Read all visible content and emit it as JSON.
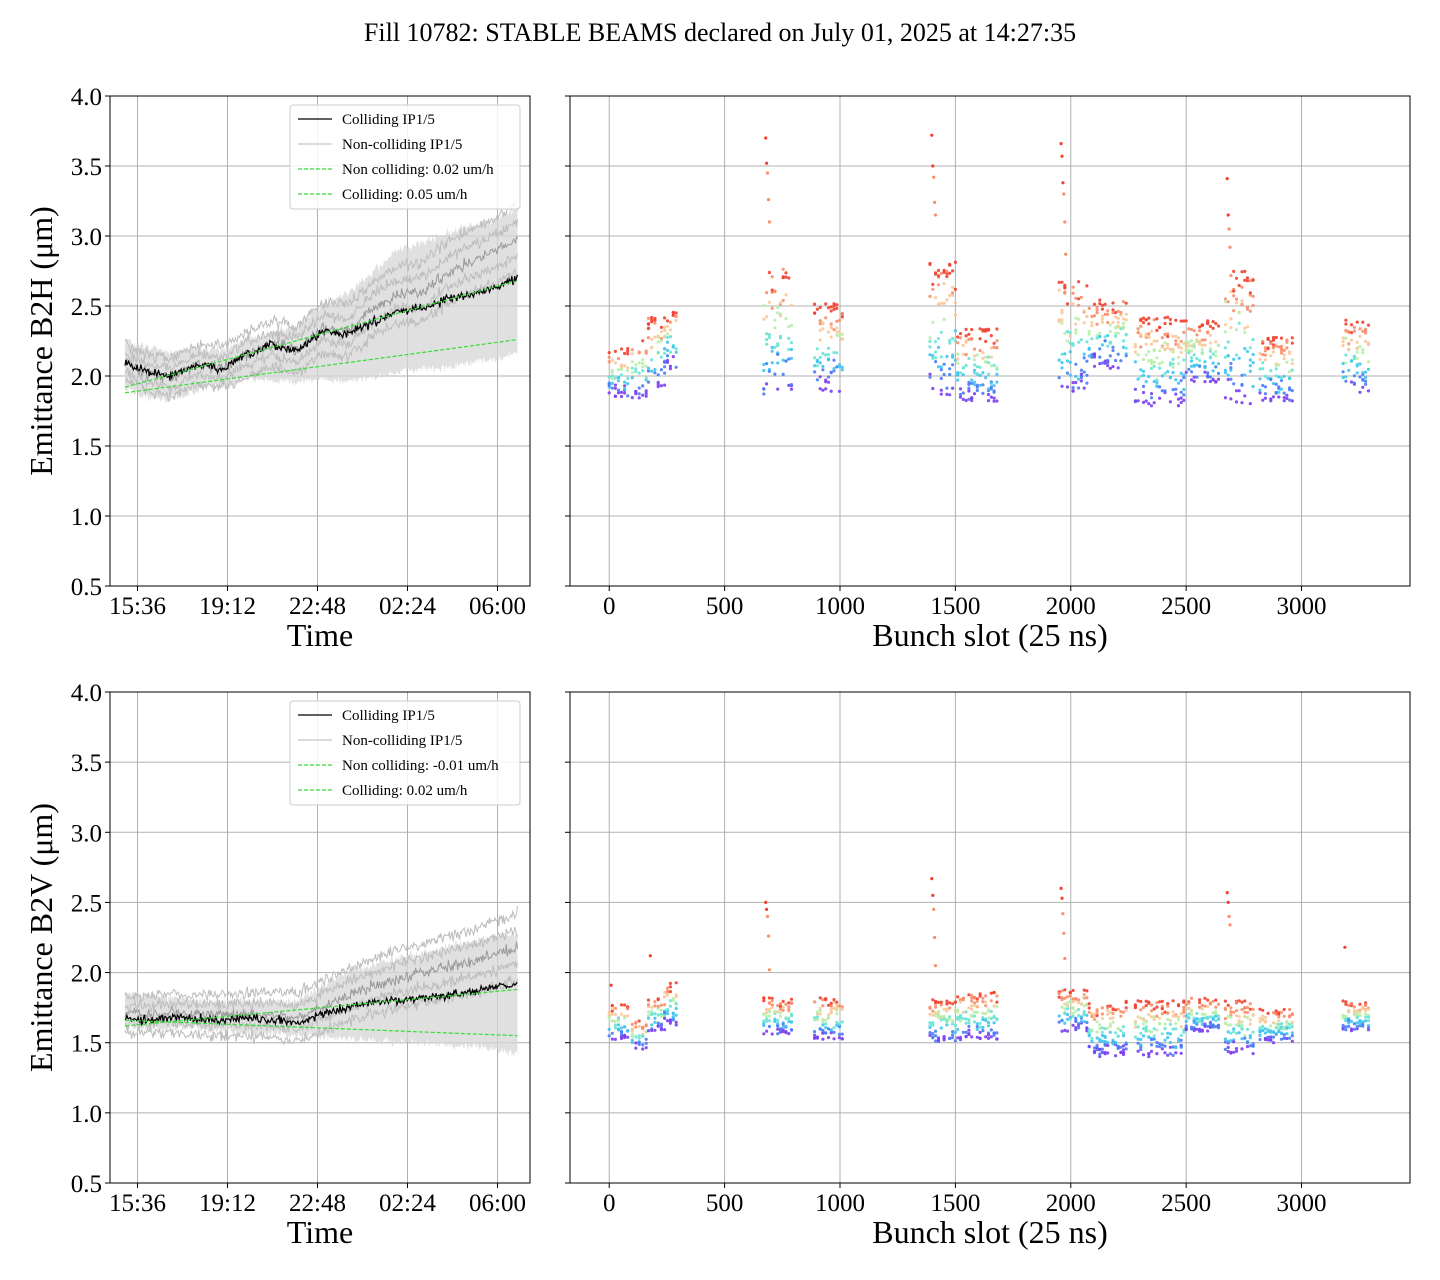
{
  "figure": {
    "title": "Fill 10782: STABLE BEAMS declared on July 01, 2025 at 14:27:35"
  },
  "colors": {
    "colliding": "#000000",
    "non_colliding": "#aaaaaa",
    "fit": "#33dd33",
    "grid": "#b0b0b0",
    "scatter_palette": [
      "#7b3ff2",
      "#4a7cf6",
      "#3fc4f0",
      "#69e4d6",
      "#b7f0a8",
      "#f8c99a",
      "#f88e6a",
      "#f2402d"
    ]
  },
  "chart_data": [
    {
      "id": "b2h_time",
      "type": "line",
      "xlabel": "Time",
      "ylabel": "Emittance B2H (μm)",
      "ylim": [
        0.5,
        4.0
      ],
      "yticks": [
        0.5,
        1.0,
        1.5,
        2.0,
        2.5,
        3.0,
        3.5,
        4.0
      ],
      "yticklabels": [
        "0.5",
        "1.0",
        "1.5",
        "2.0",
        "2.5",
        "3.0",
        "3.5",
        "4.0"
      ],
      "xlim": [
        14.5,
        31.3
      ],
      "xticks": [
        15.6,
        19.2,
        22.8,
        26.4,
        30.0
      ],
      "xticklabels": [
        "15:36",
        "19:12",
        "22:48",
        "02:24",
        "06:00"
      ],
      "grid": true,
      "legend": {
        "position": "top-right",
        "entries": [
          {
            "label": "Colliding IP1/5",
            "style": "colliding"
          },
          {
            "label": "Non-colliding IP1/5",
            "style": "non_colliding"
          },
          {
            "label": "Non colliding: 0.02 um/h",
            "style": "fit"
          },
          {
            "label": "Colliding: 0.05 um/h",
            "style": "fit"
          }
        ]
      },
      "series": [
        {
          "name": "Colliding IP1/5",
          "style": "colliding",
          "x": [
            15.1,
            16.0,
            17.0,
            18.0,
            19.0,
            20.0,
            21.0,
            22.0,
            23.0,
            24.0,
            25.0,
            26.0,
            27.0,
            28.0,
            29.0,
            30.0,
            30.8
          ],
          "y": [
            2.1,
            2.03,
            2.0,
            2.08,
            2.05,
            2.15,
            2.22,
            2.18,
            2.32,
            2.3,
            2.38,
            2.46,
            2.49,
            2.55,
            2.58,
            2.64,
            2.7
          ]
        },
        {
          "name": "Non-colliding IP1/5",
          "style": "non_colliding",
          "x": [
            15.1,
            16.0,
            17.0,
            18.0,
            19.0,
            20.0,
            21.0,
            22.0,
            23.0,
            24.0,
            25.0,
            26.0,
            27.0,
            28.0,
            29.0,
            30.0,
            30.8
          ],
          "y": [
            2.1,
            2.02,
            1.99,
            2.08,
            2.06,
            2.16,
            2.23,
            2.18,
            2.35,
            2.32,
            2.48,
            2.58,
            2.6,
            2.74,
            2.82,
            2.9,
            2.98
          ],
          "band_low": [
            1.92,
            1.85,
            1.83,
            1.9,
            1.92,
            1.98,
            1.96,
            1.95,
            1.98,
            1.97,
            1.99,
            2.02,
            2.05,
            2.06,
            2.1,
            2.12,
            2.18
          ],
          "band_high": [
            2.25,
            2.2,
            2.17,
            2.2,
            2.18,
            2.27,
            2.32,
            2.35,
            2.52,
            2.58,
            2.74,
            2.9,
            2.96,
            3.02,
            3.08,
            3.12,
            3.2
          ]
        },
        {
          "name": "Non colliding: 0.02 um/h",
          "style": "fit",
          "x": [
            15.1,
            30.8
          ],
          "y": [
            1.88,
            2.26
          ]
        },
        {
          "name": "Colliding: 0.05 um/h",
          "style": "fit",
          "x": [
            15.1,
            30.8
          ],
          "y": [
            1.92,
            2.68
          ]
        }
      ]
    },
    {
      "id": "b2h_bunch",
      "type": "scatter",
      "xlabel": "Bunch slot (25 ns)",
      "ylabel": "",
      "ylim": [
        0.5,
        4.0
      ],
      "yticks": [
        0.5,
        1.0,
        1.5,
        2.0,
        2.5,
        3.0,
        3.5,
        4.0
      ],
      "xlim": [
        -170,
        3470
      ],
      "xticks": [
        0,
        500,
        1000,
        1500,
        2000,
        2500,
        3000
      ],
      "xticklabels": [
        "0",
        "500",
        "1000",
        "1500",
        "2000",
        "2500",
        "3000"
      ],
      "grid": true,
      "trains": [
        {
          "x": [
            0,
            80
          ],
          "low": 1.85,
          "high": 2.2,
          "spikes": []
        },
        {
          "x": [
            100,
            160
          ],
          "low": 1.84,
          "high": 2.26,
          "spikes": []
        },
        {
          "x": [
            170,
            240
          ],
          "low": 1.9,
          "high": 2.42,
          "spikes": []
        },
        {
          "x": [
            240,
            290
          ],
          "low": 2.05,
          "high": 2.48,
          "spikes": []
        },
        {
          "x": [
            670,
            790
          ],
          "low": 1.86,
          "high": 2.78,
          "spikes": [
            3.7,
            3.52,
            3.45,
            3.26,
            3.1
          ]
        },
        {
          "x": [
            890,
            1010
          ],
          "low": 1.88,
          "high": 2.52,
          "spikes": []
        },
        {
          "x": [
            1390,
            1500
          ],
          "low": 1.84,
          "high": 2.82,
          "spikes": [
            3.72,
            3.5,
            3.42,
            3.24,
            3.15
          ]
        },
        {
          "x": [
            1510,
            1680
          ],
          "low": 1.82,
          "high": 2.34,
          "spikes": []
        },
        {
          "x": [
            1950,
            2070
          ],
          "low": 1.87,
          "high": 2.68,
          "spikes": [
            3.66,
            3.57,
            3.38,
            3.3,
            3.1,
            2.87
          ]
        },
        {
          "x": [
            2080,
            2240
          ],
          "low": 2.05,
          "high": 2.55,
          "spikes": []
        },
        {
          "x": [
            2280,
            2490
          ],
          "low": 1.78,
          "high": 2.42,
          "spikes": []
        },
        {
          "x": [
            2500,
            2640
          ],
          "low": 1.95,
          "high": 2.4,
          "spikes": []
        },
        {
          "x": [
            2670,
            2790
          ],
          "low": 1.8,
          "high": 2.75,
          "spikes": [
            3.41,
            3.15,
            3.05,
            2.92
          ]
        },
        {
          "x": [
            2820,
            2960
          ],
          "low": 1.82,
          "high": 2.28,
          "spikes": []
        },
        {
          "x": [
            3180,
            3290
          ],
          "low": 1.88,
          "high": 2.4,
          "spikes": []
        }
      ]
    },
    {
      "id": "b2v_time",
      "type": "line",
      "xlabel": "Time",
      "ylabel": "Emittance B2V (μm)",
      "ylim": [
        0.5,
        4.0
      ],
      "yticks": [
        0.5,
        1.0,
        1.5,
        2.0,
        2.5,
        3.0,
        3.5,
        4.0
      ],
      "yticklabels": [
        "0.5",
        "1.0",
        "1.5",
        "2.0",
        "2.5",
        "3.0",
        "3.5",
        "4.0"
      ],
      "xlim": [
        14.5,
        31.3
      ],
      "xticks": [
        15.6,
        19.2,
        22.8,
        26.4,
        30.0
      ],
      "xticklabels": [
        "15:36",
        "19:12",
        "22:48",
        "02:24",
        "06:00"
      ],
      "grid": true,
      "legend": {
        "position": "top-right",
        "entries": [
          {
            "label": "Colliding IP1/5",
            "style": "colliding"
          },
          {
            "label": "Non-colliding IP1/5",
            "style": "non_colliding"
          },
          {
            "label": "Non colliding: -0.01 um/h",
            "style": "fit"
          },
          {
            "label": "Colliding: 0.02 um/h",
            "style": "fit"
          }
        ]
      },
      "series": [
        {
          "name": "Colliding IP1/5",
          "style": "colliding",
          "x": [
            15.1,
            16.0,
            17.0,
            18.0,
            19.0,
            20.0,
            21.0,
            22.0,
            23.0,
            24.0,
            25.0,
            26.0,
            27.0,
            28.0,
            29.0,
            30.0,
            30.8
          ],
          "y": [
            1.68,
            1.66,
            1.68,
            1.67,
            1.66,
            1.68,
            1.66,
            1.64,
            1.7,
            1.75,
            1.78,
            1.8,
            1.82,
            1.84,
            1.86,
            1.9,
            1.92
          ]
        },
        {
          "name": "Non-colliding IP1/5",
          "style": "non_colliding",
          "x": [
            15.1,
            16.0,
            17.0,
            18.0,
            19.0,
            20.0,
            21.0,
            22.0,
            23.0,
            24.0,
            25.0,
            26.0,
            27.0,
            28.0,
            29.0,
            30.0,
            30.8
          ],
          "y": [
            1.7,
            1.7,
            1.71,
            1.7,
            1.7,
            1.7,
            1.7,
            1.68,
            1.76,
            1.84,
            1.9,
            1.96,
            2.0,
            2.04,
            2.08,
            2.14,
            2.18
          ],
          "band_low": [
            1.62,
            1.6,
            1.6,
            1.6,
            1.58,
            1.57,
            1.56,
            1.55,
            1.54,
            1.53,
            1.52,
            1.5,
            1.5,
            1.48,
            1.47,
            1.45,
            1.42
          ],
          "band_high": [
            1.86,
            1.84,
            1.82,
            1.8,
            1.79,
            1.8,
            1.8,
            1.8,
            1.9,
            2.0,
            2.06,
            2.1,
            2.14,
            2.18,
            2.22,
            2.26,
            2.28
          ]
        },
        {
          "name": "Non colliding: -0.01 um/h",
          "style": "fit",
          "x": [
            15.1,
            30.8
          ],
          "y": [
            1.66,
            1.55
          ]
        },
        {
          "name": "Colliding: 0.02 um/h",
          "style": "fit",
          "x": [
            15.1,
            30.8
          ],
          "y": [
            1.62,
            1.88
          ]
        }
      ]
    },
    {
      "id": "b2v_bunch",
      "type": "scatter",
      "xlabel": "Bunch slot (25 ns)",
      "ylabel": "",
      "ylim": [
        0.5,
        4.0
      ],
      "yticks": [
        0.5,
        1.0,
        1.5,
        2.0,
        2.5,
        3.0,
        3.5,
        4.0
      ],
      "xlim": [
        -170,
        3470
      ],
      "xticks": [
        0,
        500,
        1000,
        1500,
        2000,
        2500,
        3000
      ],
      "xticklabels": [
        "0",
        "500",
        "1000",
        "1500",
        "2000",
        "2500",
        "3000"
      ],
      "grid": true,
      "trains": [
        {
          "x": [
            0,
            80
          ],
          "low": 1.52,
          "high": 1.78,
          "spikes": [
            1.91
          ]
        },
        {
          "x": [
            100,
            160
          ],
          "low": 1.45,
          "high": 1.66,
          "spikes": []
        },
        {
          "x": [
            170,
            240
          ],
          "low": 1.58,
          "high": 1.82,
          "spikes": [
            2.12
          ]
        },
        {
          "x": [
            240,
            290
          ],
          "low": 1.62,
          "high": 1.94,
          "spikes": []
        },
        {
          "x": [
            670,
            790
          ],
          "low": 1.56,
          "high": 1.82,
          "spikes": [
            2.5,
            2.45,
            2.4,
            2.26,
            2.02
          ]
        },
        {
          "x": [
            890,
            1010
          ],
          "low": 1.52,
          "high": 1.82,
          "spikes": []
        },
        {
          "x": [
            1390,
            1500
          ],
          "low": 1.5,
          "high": 1.82,
          "spikes": [
            2.67,
            2.55,
            2.45,
            2.25,
            2.05
          ]
        },
        {
          "x": [
            1510,
            1680
          ],
          "low": 1.52,
          "high": 1.86,
          "spikes": []
        },
        {
          "x": [
            1950,
            2070
          ],
          "low": 1.58,
          "high": 1.88,
          "spikes": [
            2.6,
            2.53,
            2.42,
            2.28,
            2.1
          ]
        },
        {
          "x": [
            2080,
            2240
          ],
          "low": 1.4,
          "high": 1.8,
          "spikes": []
        },
        {
          "x": [
            2280,
            2490
          ],
          "low": 1.4,
          "high": 1.8,
          "spikes": []
        },
        {
          "x": [
            2500,
            2640
          ],
          "low": 1.58,
          "high": 1.82,
          "spikes": []
        },
        {
          "x": [
            2670,
            2790
          ],
          "low": 1.42,
          "high": 1.8,
          "spikes": [
            2.57,
            2.5,
            2.4,
            2.34
          ]
        },
        {
          "x": [
            2820,
            2960
          ],
          "low": 1.5,
          "high": 1.74,
          "spikes": []
        },
        {
          "x": [
            3180,
            3290
          ],
          "low": 1.58,
          "high": 1.8,
          "spikes": [
            2.18
          ]
        }
      ]
    }
  ]
}
